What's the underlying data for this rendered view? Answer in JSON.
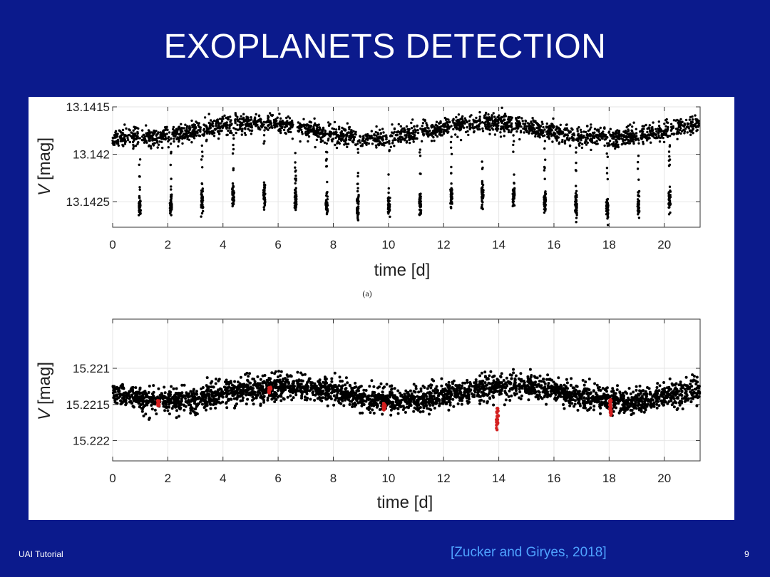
{
  "slide": {
    "title": "EXOPLANETS DETECTION",
    "footer_left": "UAI Tutorial",
    "citation": "[Zucker and Giryes, 2018]",
    "page_number": "9"
  },
  "colors": {
    "background": "#0b1a8c",
    "points": "#000000",
    "transit_points": "#d42020",
    "citation": "#4fa3ff"
  },
  "chart_data": [
    {
      "type": "scatter",
      "subcaption": "(a)",
      "xlabel": "time [d]",
      "ylabel": "V [mag]",
      "ylabel_var": "V",
      "ylabel_unit": "[mag]",
      "xlim": [
        0,
        21.3
      ],
      "ylim": [
        13.1415,
        13.14277
      ],
      "y_inverted": true,
      "xticks": [
        0,
        2,
        4,
        6,
        8,
        10,
        12,
        14,
        16,
        18,
        20
      ],
      "yticks": [
        13.1415,
        13.142,
        13.1425
      ],
      "ytick_labels": [
        "13.1415",
        "13.142",
        "13.1425"
      ],
      "baseline_mag": 13.14175,
      "baseline_scatter": 9e-05,
      "modulation_amplitude": 8e-05,
      "modulation_period_d": 8.5,
      "transit_period_d": 1.13,
      "transit_first_d": 0.98,
      "transit_mag": 13.1425,
      "points_per_transit": 40
    },
    {
      "type": "scatter",
      "subcaption": "",
      "xlabel": "time [d]",
      "ylabel": "V [mag]",
      "ylabel_var": "V",
      "ylabel_unit": "[mag]",
      "xlim": [
        0,
        21.3
      ],
      "ylim": [
        15.22032,
        15.22228
      ],
      "y_inverted": true,
      "xticks": [
        0,
        2,
        4,
        6,
        8,
        10,
        12,
        14,
        16,
        18,
        20
      ],
      "yticks": [
        15.221,
        15.2215,
        15.222
      ],
      "ytick_labels": [
        "15.221",
        "15.2215",
        "15.222"
      ],
      "baseline_mag": 15.22135,
      "baseline_scatter": 0.00012,
      "modulation_amplitude": 0.0001,
      "modulation_period_d": 8.2,
      "highlighted_transits_d": [
        1.65,
        5.7,
        9.85,
        13.95,
        18.05
      ],
      "highlighted_center_mag": [
        15.22147,
        15.2213,
        15.22153,
        15.2217,
        15.22155
      ],
      "highlighted_spread_mag": [
        5e-05,
        4e-05,
        5e-05,
        0.00015,
        0.00012
      ]
    }
  ]
}
